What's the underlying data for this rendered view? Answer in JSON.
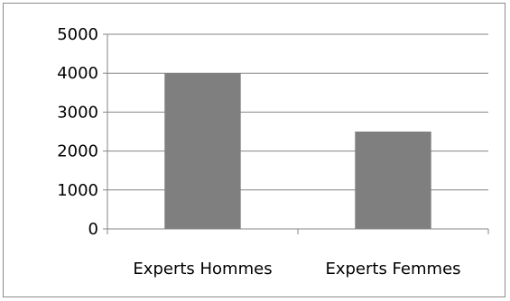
{
  "chart_data": {
    "type": "bar",
    "title": "",
    "xlabel": "",
    "ylabel": "",
    "categories": [
      "Experts Hommes",
      "Experts Femmes"
    ],
    "values": [
      4000,
      2500
    ],
    "ylim": [
      0,
      5000
    ],
    "yticks": [
      "0",
      "1000",
      "2000",
      "3000",
      "4000",
      "5000"
    ],
    "grid": true,
    "legend": "none",
    "colors": {
      "bar": "#7f7f7f",
      "grid": "#868686",
      "axis": "#868686",
      "border": "#8c8c8c"
    }
  }
}
